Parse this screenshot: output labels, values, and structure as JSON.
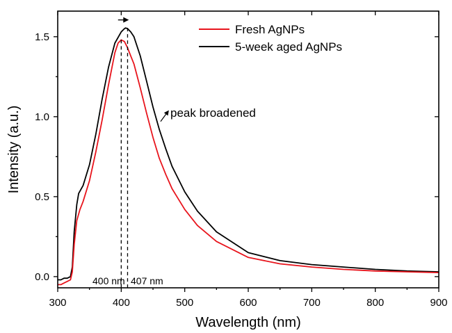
{
  "chart_data": {
    "type": "line",
    "title": "",
    "xlabel": "Wavelength (nm)",
    "ylabel": "Intensity (a.u.)",
    "xlim": [
      300,
      900
    ],
    "ylim": [
      -0.07,
      1.66
    ],
    "xticks": [
      300,
      400,
      500,
      600,
      700,
      800,
      900
    ],
    "xtick_labels": [
      "300",
      "400",
      "500",
      "600",
      "700",
      "800",
      "900"
    ],
    "yticks": [
      0.0,
      0.5,
      1.0,
      1.5
    ],
    "ytick_labels": [
      "0.0",
      "0.5",
      "1.0",
      "1.5"
    ],
    "grid": false,
    "legend_position": "top-right",
    "series": [
      {
        "name": "Fresh AgNPs",
        "color": "#e8141c",
        "x": [
          300,
          305,
          310,
          315,
          320,
          323,
          326,
          330,
          335,
          340,
          350,
          360,
          370,
          380,
          390,
          395,
          400,
          405,
          410,
          415,
          420,
          430,
          440,
          450,
          460,
          470,
          480,
          500,
          520,
          550,
          600,
          650,
          700,
          750,
          800,
          850,
          900
        ],
        "y": [
          -0.05,
          -0.05,
          -0.04,
          -0.03,
          -0.02,
          0.03,
          0.2,
          0.35,
          0.42,
          0.47,
          0.6,
          0.78,
          0.98,
          1.2,
          1.4,
          1.46,
          1.48,
          1.47,
          1.43,
          1.38,
          1.33,
          1.18,
          1.02,
          0.87,
          0.74,
          0.64,
          0.55,
          0.42,
          0.32,
          0.22,
          0.12,
          0.08,
          0.06,
          0.045,
          0.035,
          0.03,
          0.025
        ]
      },
      {
        "name": "5-week aged AgNPs",
        "color": "#000000",
        "x": [
          300,
          305,
          310,
          315,
          320,
          323,
          326,
          330,
          333,
          340,
          350,
          360,
          370,
          380,
          390,
          400,
          405,
          407,
          410,
          415,
          420,
          430,
          440,
          450,
          460,
          470,
          480,
          500,
          520,
          550,
          600,
          650,
          700,
          750,
          800,
          850,
          900
        ],
        "y": [
          -0.02,
          -0.02,
          -0.01,
          -0.01,
          0.0,
          0.06,
          0.28,
          0.45,
          0.52,
          0.57,
          0.7,
          0.89,
          1.11,
          1.31,
          1.46,
          1.53,
          1.55,
          1.555,
          1.55,
          1.53,
          1.5,
          1.38,
          1.22,
          1.06,
          0.92,
          0.8,
          0.69,
          0.53,
          0.41,
          0.28,
          0.15,
          0.1,
          0.075,
          0.06,
          0.045,
          0.035,
          0.03
        ]
      }
    ],
    "annotations": {
      "peak_fresh_label": "400 nm",
      "peak_aged_label": "407 nm",
      "broadened_label": "peak broadened",
      "peak_fresh_x": 400,
      "peak_aged_x": 410,
      "shift_arrow_y": 1.605,
      "broadened_arrow_from": [
        462,
        0.97
      ],
      "broadened_arrow_to": [
        475,
        1.04
      ]
    }
  }
}
